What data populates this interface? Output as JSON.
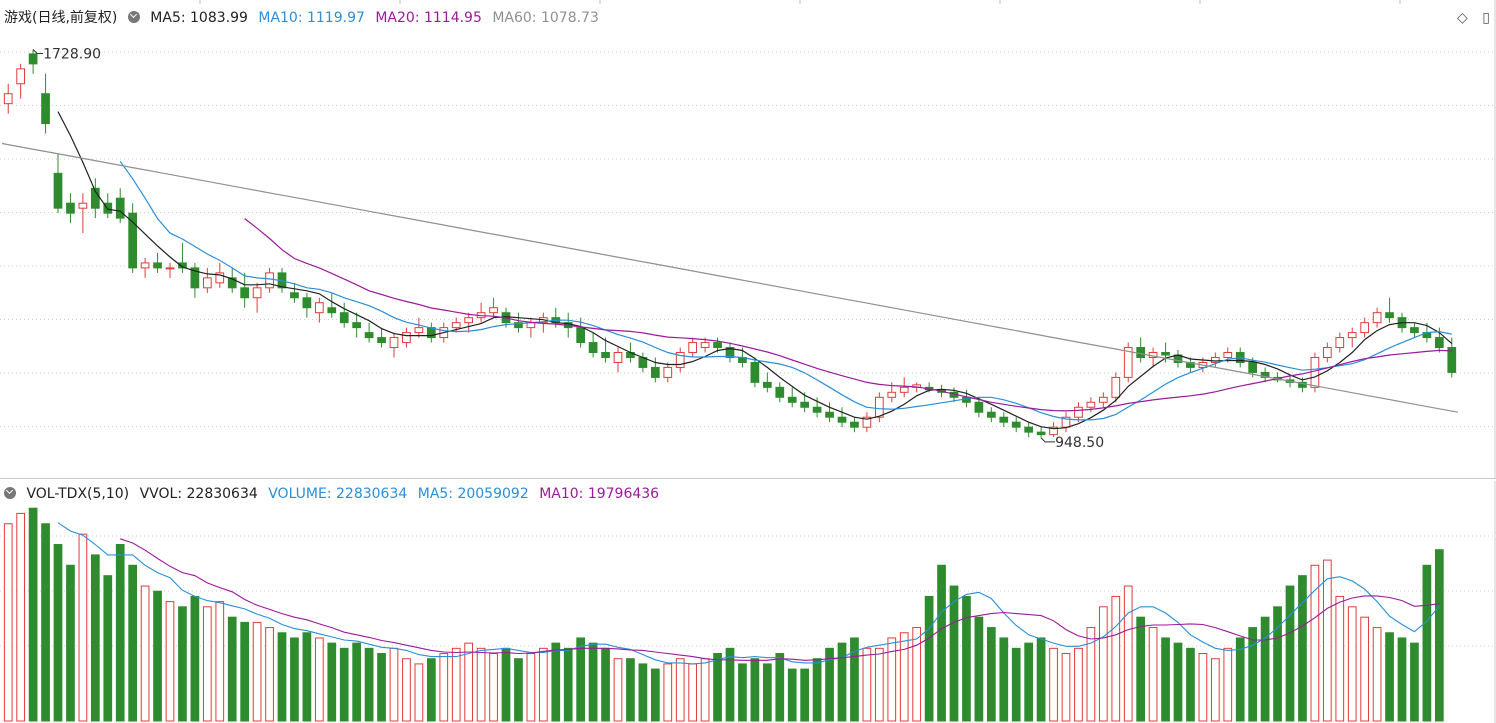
{
  "main": {
    "title": "游戏(日线,前复权)",
    "legend": [
      {
        "label": "MA5: 1083.99",
        "color": "#222222"
      },
      {
        "label": "MA10: 1119.97",
        "color": "#2a8fd8"
      },
      {
        "label": "MA20: 1114.95",
        "color": "#9b1b9b"
      },
      {
        "label": "MA60: 1078.73",
        "color": "#909090"
      }
    ],
    "high_label": "1728.90",
    "low_label": "948.50",
    "icons": [
      "diamond-icon",
      "panel-toggle-icon"
    ]
  },
  "volume": {
    "title": "VOL-TDX(5,10)",
    "legend": [
      {
        "label": "VVOL: 22830634",
        "color": "#222222"
      },
      {
        "label": "VOLUME: 22830634",
        "color": "#2a8fd8"
      },
      {
        "label": "MA5: 20059092",
        "color": "#2a8fd8"
      },
      {
        "label": "MA10: 19796436",
        "color": "#9b1b9b"
      }
    ]
  },
  "colors": {
    "up": "#e03c3c",
    "down": "#2e8b2e",
    "grid": "#cfcfcf"
  },
  "chart_data": [
    {
      "type": "candlestick",
      "title": "游戏(日线,前复权)",
      "ylim": [
        900,
        1760
      ],
      "candles": [
        [
          1620,
          1660,
          1600,
          1640
        ],
        [
          1660,
          1700,
          1630,
          1690
        ],
        [
          1720,
          1728.9,
          1680,
          1700
        ],
        [
          1640,
          1680,
          1560,
          1580
        ],
        [
          1480,
          1520,
          1400,
          1410
        ],
        [
          1420,
          1440,
          1380,
          1400
        ],
        [
          1410,
          1440,
          1360,
          1420
        ],
        [
          1450,
          1470,
          1390,
          1410
        ],
        [
          1420,
          1440,
          1390,
          1400
        ],
        [
          1430,
          1450,
          1380,
          1390
        ],
        [
          1400,
          1420,
          1280,
          1290
        ],
        [
          1290,
          1310,
          1270,
          1300
        ],
        [
          1300,
          1320,
          1280,
          1290
        ],
        [
          1290,
          1300,
          1270,
          1290
        ],
        [
          1300,
          1340,
          1280,
          1290
        ],
        [
          1290,
          1300,
          1230,
          1250
        ],
        [
          1250,
          1290,
          1240,
          1270
        ],
        [
          1260,
          1300,
          1250,
          1280
        ],
        [
          1270,
          1290,
          1240,
          1250
        ],
        [
          1250,
          1280,
          1210,
          1230
        ],
        [
          1230,
          1260,
          1200,
          1250
        ],
        [
          1250,
          1290,
          1240,
          1280
        ],
        [
          1280,
          1290,
          1240,
          1250
        ],
        [
          1240,
          1260,
          1220,
          1230
        ],
        [
          1230,
          1240,
          1190,
          1210
        ],
        [
          1200,
          1230,
          1180,
          1220
        ],
        [
          1210,
          1240,
          1190,
          1200
        ],
        [
          1200,
          1220,
          1170,
          1180
        ],
        [
          1180,
          1200,
          1150,
          1170
        ],
        [
          1160,
          1180,
          1140,
          1150
        ],
        [
          1150,
          1170,
          1130,
          1140
        ],
        [
          1130,
          1160,
          1110,
          1150
        ],
        [
          1140,
          1170,
          1130,
          1160
        ],
        [
          1160,
          1190,
          1150,
          1170
        ],
        [
          1170,
          1180,
          1140,
          1150
        ],
        [
          1150,
          1180,
          1140,
          1170
        ],
        [
          1170,
          1190,
          1160,
          1180
        ],
        [
          1180,
          1200,
          1160,
          1190
        ],
        [
          1190,
          1220,
          1180,
          1200
        ],
        [
          1200,
          1230,
          1190,
          1210
        ],
        [
          1200,
          1210,
          1170,
          1180
        ],
        [
          1180,
          1200,
          1160,
          1170
        ],
        [
          1170,
          1190,
          1150,
          1180
        ],
        [
          1180,
          1200,
          1160,
          1190
        ],
        [
          1190,
          1210,
          1170,
          1180
        ],
        [
          1180,
          1200,
          1150,
          1170
        ],
        [
          1170,
          1190,
          1130,
          1140
        ],
        [
          1140,
          1160,
          1110,
          1120
        ],
        [
          1120,
          1150,
          1100,
          1110
        ],
        [
          1100,
          1130,
          1080,
          1120
        ],
        [
          1120,
          1140,
          1100,
          1110
        ],
        [
          1110,
          1120,
          1080,
          1090
        ],
        [
          1090,
          1110,
          1060,
          1070
        ],
        [
          1070,
          1100,
          1060,
          1090
        ],
        [
          1090,
          1130,
          1080,
          1120
        ],
        [
          1120,
          1150,
          1110,
          1140
        ],
        [
          1130,
          1150,
          1120,
          1140
        ],
        [
          1140,
          1150,
          1120,
          1130
        ],
        [
          1130,
          1140,
          1100,
          1110
        ],
        [
          1110,
          1130,
          1090,
          1100
        ],
        [
          1100,
          1110,
          1050,
          1060
        ],
        [
          1060,
          1080,
          1040,
          1050
        ],
        [
          1050,
          1060,
          1020,
          1030
        ],
        [
          1030,
          1050,
          1010,
          1020
        ],
        [
          1020,
          1040,
          1000,
          1010
        ],
        [
          1010,
          1030,
          990,
          1000
        ],
        [
          1000,
          1020,
          980,
          990
        ],
        [
          990,
          1010,
          970,
          980
        ],
        [
          980,
          990,
          960,
          970
        ],
        [
          970,
          1000,
          960,
          990
        ],
        [
          990,
          1040,
          980,
          1030
        ],
        [
          1030,
          1060,
          1020,
          1040
        ],
        [
          1040,
          1070,
          1030,
          1050
        ],
        [
          1050,
          1060,
          1040,
          1055
        ],
        [
          1050,
          1060,
          1040,
          1045
        ],
        [
          1045,
          1055,
          1030,
          1040
        ],
        [
          1040,
          1050,
          1020,
          1030
        ],
        [
          1030,
          1045,
          1010,
          1020
        ],
        [
          1020,
          1030,
          990,
          1000
        ],
        [
          1000,
          1010,
          980,
          990
        ],
        [
          990,
          1000,
          970,
          980
        ],
        [
          980,
          990,
          960,
          970
        ],
        [
          970,
          980,
          950,
          960
        ],
        [
          960,
          970,
          948.5,
          955
        ],
        [
          955,
          980,
          950,
          970
        ],
        [
          970,
          1000,
          960,
          990
        ],
        [
          990,
          1020,
          980,
          1010
        ],
        [
          1010,
          1030,
          1000,
          1020
        ],
        [
          1020,
          1040,
          1010,
          1030
        ],
        [
          1030,
          1080,
          1020,
          1070
        ],
        [
          1070,
          1140,
          1060,
          1130
        ],
        [
          1130,
          1150,
          1100,
          1110
        ],
        [
          1110,
          1130,
          1090,
          1120
        ],
        [
          1120,
          1140,
          1100,
          1115
        ],
        [
          1115,
          1125,
          1090,
          1100
        ],
        [
          1100,
          1110,
          1080,
          1090
        ],
        [
          1090,
          1110,
          1080,
          1100
        ],
        [
          1100,
          1120,
          1090,
          1110
        ],
        [
          1110,
          1130,
          1100,
          1120
        ],
        [
          1120,
          1130,
          1090,
          1100
        ],
        [
          1100,
          1110,
          1070,
          1080
        ],
        [
          1080,
          1090,
          1060,
          1070
        ],
        [
          1070,
          1080,
          1060,
          1065
        ],
        [
          1065,
          1075,
          1050,
          1060
        ],
        [
          1060,
          1070,
          1040,
          1050
        ],
        [
          1050,
          1120,
          1040,
          1110
        ],
        [
          1110,
          1140,
          1100,
          1130
        ],
        [
          1130,
          1160,
          1120,
          1150
        ],
        [
          1150,
          1170,
          1130,
          1160
        ],
        [
          1160,
          1190,
          1150,
          1180
        ],
        [
          1180,
          1210,
          1170,
          1200
        ],
        [
          1200,
          1230,
          1180,
          1190
        ],
        [
          1190,
          1200,
          1160,
          1170
        ],
        [
          1170,
          1180,
          1150,
          1160
        ],
        [
          1160,
          1180,
          1140,
          1150
        ],
        [
          1150,
          1170,
          1120,
          1130
        ],
        [
          1130,
          1150,
          1070,
          1080
        ]
      ],
      "ma60": [
        1540,
        1530,
        1520,
        1510,
        1500,
        1490,
        1480,
        1470,
        1460,
        1450,
        1440,
        1430,
        1420,
        1410,
        1400,
        1390,
        1380,
        1370,
        1360,
        1350,
        1340,
        1330,
        1320,
        1310,
        1300,
        1290,
        1280,
        1270,
        1260,
        1250,
        1240,
        1230,
        1220,
        1210,
        1200,
        1190,
        1180,
        1170,
        1160,
        1150,
        1140,
        1130,
        1120,
        1110,
        1100,
        1090,
        1080,
        1070,
        1060,
        1050,
        1040,
        1030,
        1020,
        1010,
        1000
      ]
    },
    {
      "type": "bar",
      "title": "VOL-TDX(5,10)",
      "volumes": [
        38,
        40,
        41,
        38,
        34,
        30,
        36,
        32,
        28,
        34,
        30,
        26,
        25,
        23,
        22,
        24,
        22,
        23,
        20,
        19,
        19,
        18,
        17,
        16,
        17,
        16,
        15,
        14,
        15,
        14,
        13,
        14,
        12,
        11,
        12,
        13,
        14,
        15,
        14,
        13,
        14,
        12,
        13,
        14,
        15,
        14,
        16,
        15,
        14,
        12,
        12,
        11,
        10,
        11,
        12,
        11,
        12,
        13,
        14,
        11,
        12,
        11,
        13,
        10,
        10,
        12,
        14,
        15,
        16,
        14,
        14,
        16,
        17,
        18,
        24,
        30,
        26,
        24,
        20,
        18,
        16,
        14,
        15,
        16,
        14,
        13,
        14,
        18,
        22,
        24,
        26,
        20,
        18,
        16,
        15,
        14,
        13,
        12,
        14,
        16,
        18,
        20,
        22,
        26,
        28,
        30,
        31,
        24,
        22,
        20,
        18,
        17,
        16,
        15,
        30,
        33
      ]
    }
  ]
}
